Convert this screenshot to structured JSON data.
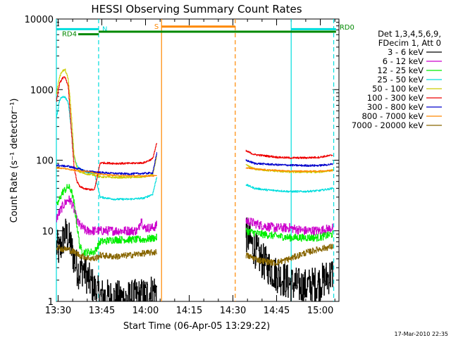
{
  "chart_data": {
    "type": "line",
    "title": "HESSI Observing Summary Count Rates",
    "xlabel": "Start Time (06-Apr-05 13:29:22)",
    "ylabel": "Count Rate (s⁻¹ detector⁻¹)",
    "x_units": "minutes since 13:29:22",
    "x_range": [
      0,
      97
    ],
    "ylim": [
      1,
      10000
    ],
    "y_scale": "log",
    "x_ticks": [
      {
        "label": "13:30",
        "x": 0.6
      },
      {
        "label": "13:45",
        "x": 15.6
      },
      {
        "label": "14:00",
        "x": 30.6
      },
      {
        "label": "14:15",
        "x": 45.6
      },
      {
        "label": "14:30",
        "x": 60.6
      },
      {
        "label": "14:45",
        "x": 75.6
      },
      {
        "label": "15:00",
        "x": 90.6
      }
    ],
    "y_ticks": [
      {
        "label": "1",
        "v": 1
      },
      {
        "label": "10",
        "v": 10
      },
      {
        "label": "100",
        "v": 100
      },
      {
        "label": "1000",
        "v": 1000
      },
      {
        "label": "10000",
        "v": 10000
      }
    ],
    "legend_header": [
      "Det 1,3,4,5,6,9,",
      "FDecim 1, Att 0"
    ],
    "legend_position": "right",
    "series": [
      {
        "name": "3 - 6 keV",
        "color": "#000000",
        "noise": 0.6,
        "segments": [
          [
            [
              0,
              6
            ],
            [
              1,
              5
            ],
            [
              2,
              7
            ],
            [
              3,
              9
            ],
            [
              4,
              8
            ],
            [
              5,
              6
            ],
            [
              6,
              4
            ],
            [
              7,
              3
            ],
            [
              8,
              2.5
            ],
            [
              9,
              3
            ],
            [
              10,
              2.5
            ],
            [
              11,
              2
            ],
            [
              12,
              1.8
            ],
            [
              13,
              1.5
            ],
            [
              14,
              1.3
            ],
            [
              15,
              1.2
            ],
            [
              20,
              1.1
            ],
            [
              25,
              1.1
            ],
            [
              30,
              1.2
            ],
            [
              34.5,
              1.5
            ]
          ],
          [
            [
              65,
              9
            ],
            [
              70,
              4
            ],
            [
              75,
              2.5
            ],
            [
              80,
              1.8
            ],
            [
              85,
              1.6
            ],
            [
              90,
              1.8
            ],
            [
              95,
              2.5
            ]
          ]
        ]
      },
      {
        "name": "6 - 12 keV",
        "color": "#cc00cc",
        "noise": 0.15,
        "segments": [
          [
            [
              0,
              15
            ],
            [
              2,
              22
            ],
            [
              4,
              28
            ],
            [
              5,
              26
            ],
            [
              6,
              20
            ],
            [
              7,
              14
            ],
            [
              8,
              12
            ],
            [
              9,
              11
            ],
            [
              10,
              10
            ],
            [
              13,
              10
            ],
            [
              15,
              10
            ],
            [
              20,
              10
            ],
            [
              25,
              10
            ],
            [
              28,
              10
            ],
            [
              29,
              15
            ],
            [
              30,
              11
            ],
            [
              33,
              11
            ],
            [
              34.5,
              12
            ]
          ],
          [
            [
              65,
              14
            ],
            [
              70,
              12
            ],
            [
              75,
              11
            ],
            [
              80,
              11
            ],
            [
              85,
              10
            ],
            [
              90,
              10
            ],
            [
              95,
              11
            ]
          ]
        ]
      },
      {
        "name": "12 - 25 keV",
        "color": "#00ee00",
        "noise": 0.12,
        "segments": [
          [
            [
              0,
              22
            ],
            [
              2,
              35
            ],
            [
              4,
              42
            ],
            [
              5,
              38
            ],
            [
              6,
              25
            ],
            [
              7,
              12
            ],
            [
              8,
              6
            ],
            [
              9,
              5
            ],
            [
              10,
              5
            ],
            [
              13,
              5
            ],
            [
              15,
              7
            ],
            [
              20,
              7.5
            ],
            [
              25,
              7.5
            ],
            [
              30,
              7.5
            ],
            [
              34.5,
              8
            ]
          ],
          [
            [
              65,
              10
            ],
            [
              70,
              9
            ],
            [
              75,
              8.5
            ],
            [
              80,
              8
            ],
            [
              85,
              8
            ],
            [
              90,
              8
            ],
            [
              95,
              9
            ]
          ]
        ]
      },
      {
        "name": "25 - 50 keV",
        "color": "#00dddd",
        "noise": 0.03,
        "segments": [
          [
            [
              0,
              400
            ],
            [
              1,
              700
            ],
            [
              2,
              800
            ],
            [
              3,
              780
            ],
            [
              4,
              650
            ],
            [
              5,
              300
            ],
            [
              6,
              110
            ],
            [
              7,
              85
            ],
            [
              8,
              75
            ],
            [
              10,
              68
            ],
            [
              13,
              65
            ],
            [
              15,
              30
            ],
            [
              20,
              28
            ],
            [
              25,
              28
            ],
            [
              30,
              29
            ],
            [
              33,
              33
            ],
            [
              34.5,
              60
            ]
          ],
          [
            [
              65,
              45
            ],
            [
              68,
              40
            ],
            [
              72,
              38
            ],
            [
              76,
              37
            ],
            [
              80,
              36
            ],
            [
              85,
              36
            ],
            [
              90,
              37
            ],
            [
              95,
              40
            ]
          ]
        ]
      },
      {
        "name": "50 - 100 keV",
        "color": "#cccc00",
        "noise": 0.03,
        "segments": [
          [
            [
              0,
              900
            ],
            [
              1,
              1500
            ],
            [
              2,
              1850
            ],
            [
              3,
              1900
            ],
            [
              4,
              1400
            ],
            [
              5,
              500
            ],
            [
              6,
              120
            ],
            [
              7,
              75
            ],
            [
              8,
              68
            ],
            [
              10,
              64
            ],
            [
              13,
              62
            ],
            [
              15,
              58
            ],
            [
              20,
              57
            ],
            [
              25,
              57
            ],
            [
              30,
              58
            ],
            [
              33,
              62
            ],
            [
              34.5,
              120
            ]
          ],
          [
            [
              65,
              85
            ],
            [
              68,
              75
            ],
            [
              72,
              72
            ],
            [
              76,
              70
            ],
            [
              80,
              68
            ],
            [
              85,
              68
            ],
            [
              90,
              68
            ],
            [
              95,
              72
            ]
          ]
        ]
      },
      {
        "name": "100 - 300 keV",
        "color": "#ee0000",
        "noise": 0.03,
        "segments": [
          [
            [
              0,
              700
            ],
            [
              1,
              1200
            ],
            [
              2,
              1450
            ],
            [
              3,
              1500
            ],
            [
              4,
              1100
            ],
            [
              5,
              300
            ],
            [
              6,
              80
            ],
            [
              7,
              50
            ],
            [
              8,
              42
            ],
            [
              10,
              39
            ],
            [
              13,
              38
            ],
            [
              15,
              92
            ],
            [
              20,
              90
            ],
            [
              25,
              90
            ],
            [
              30,
              92
            ],
            [
              33,
              105
            ],
            [
              34.5,
              180
            ]
          ],
          [
            [
              65,
              135
            ],
            [
              68,
              120
            ],
            [
              72,
              115
            ],
            [
              76,
              110
            ],
            [
              80,
              108
            ],
            [
              85,
              108
            ],
            [
              90,
              110
            ],
            [
              95,
              118
            ]
          ]
        ]
      },
      {
        "name": "300 - 800 keV",
        "color": "#0000cc",
        "noise": 0.03,
        "segments": [
          [
            [
              0,
              85
            ],
            [
              2,
              83
            ],
            [
              4,
              82
            ],
            [
              6,
              78
            ],
            [
              8,
              75
            ],
            [
              10,
              70
            ],
            [
              13,
              68
            ],
            [
              15,
              67
            ],
            [
              20,
              65
            ],
            [
              25,
              64
            ],
            [
              30,
              65
            ],
            [
              33,
              66
            ],
            [
              34.5,
              130
            ]
          ],
          [
            [
              65,
              100
            ],
            [
              68,
              90
            ],
            [
              72,
              88
            ],
            [
              76,
              86
            ],
            [
              80,
              85
            ],
            [
              85,
              84
            ],
            [
              90,
              84
            ],
            [
              95,
              88
            ]
          ]
        ]
      },
      {
        "name": "800 - 7000 keV",
        "color": "#ff8800",
        "noise": 0.02,
        "segments": [
          [
            [
              0,
              78
            ],
            [
              3,
              76
            ],
            [
              6,
              72
            ],
            [
              9,
              70
            ],
            [
              12,
              68
            ],
            [
              15,
              63
            ],
            [
              20,
              61
            ],
            [
              25,
              60
            ],
            [
              30,
              60
            ],
            [
              34.5,
              60
            ]
          ],
          [
            [
              65,
              78
            ],
            [
              70,
              74
            ],
            [
              75,
              72
            ],
            [
              80,
              70
            ],
            [
              85,
              70
            ],
            [
              90,
              70
            ],
            [
              95,
              72
            ]
          ]
        ]
      },
      {
        "name": "7000 - 20000 keV",
        "color": "#886600",
        "noise": 0.1,
        "segments": [
          [
            [
              0,
              6
            ],
            [
              2,
              5.5
            ],
            [
              4,
              5.5
            ],
            [
              6,
              5
            ],
            [
              8,
              4.5
            ],
            [
              10,
              4.2
            ],
            [
              13,
              4
            ],
            [
              15,
              4.5
            ],
            [
              20,
              4.3
            ],
            [
              25,
              4.5
            ],
            [
              30,
              4.8
            ],
            [
              34.5,
              5
            ]
          ],
          [
            [
              65,
              4.5
            ],
            [
              70,
              3.8
            ],
            [
              75,
              3.5
            ],
            [
              80,
              4
            ],
            [
              85,
              4.8
            ],
            [
              90,
              5.5
            ],
            [
              95,
              6
            ]
          ]
        ]
      }
    ],
    "vlines": [
      {
        "x": 0.0,
        "color": "#00dddd",
        "dashed": false
      },
      {
        "x": 14.5,
        "color": "#00dddd",
        "dashed": true
      },
      {
        "x": 36.1,
        "color": "#ff8800",
        "dashed": false
      },
      {
        "x": 61.4,
        "color": "#ff8800",
        "dashed": true
      },
      {
        "x": 80.6,
        "color": "#00dddd",
        "dashed": false
      },
      {
        "x": 95.2,
        "color": "#00dddd",
        "dashed": true
      }
    ],
    "flags": [
      {
        "label": "N",
        "color": "#00dddd",
        "row": 4,
        "spans": [
          [
            0,
            14.5
          ],
          [
            80.6,
            96
          ]
        ]
      },
      {
        "label": "S",
        "color": "#ff8800",
        "row": 3,
        "spans": [
          [
            36.1,
            61.4
          ]
        ]
      },
      {
        "label": "RD0",
        "color": "#008800",
        "row": 5,
        "spans": [
          [
            14.5,
            96
          ]
        ]
      },
      {
        "label": "RD4",
        "color": "#008800",
        "row": 6,
        "spans": [
          [
            7.5,
            14.5
          ]
        ]
      }
    ]
  },
  "footer": {
    "timestamp": "17-Mar-2010 22:35"
  }
}
